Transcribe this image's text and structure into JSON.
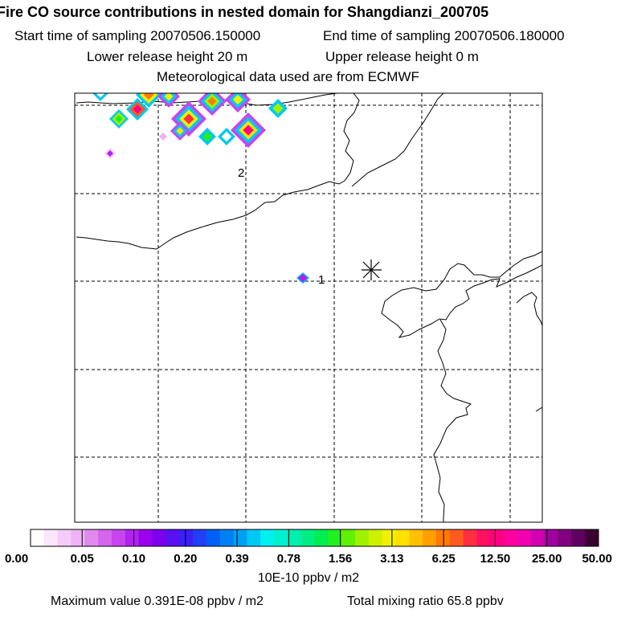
{
  "header": {
    "title": "Fire CO source contributions in nested domain for Shangdianzi_200705",
    "start_label": "Start time of sampling 20070506.150000",
    "end_label": "End time of sampling 20070506.180000",
    "lower_label": "Lower release height   20 m",
    "upper_label": "Upper release height    0 m",
    "met_label": "Meteorological data used are from ECMWF"
  },
  "chart_data": {
    "type": "heatmap",
    "map_labels": [
      {
        "text": "2",
        "desc": "upper label"
      },
      {
        "text": "1",
        "desc": "right of purple diamond"
      }
    ],
    "station_marker": "asterisk",
    "colorbar": {
      "unit": "10E-10 ppbv / m2",
      "tick_labels": [
        "0.00",
        "0.05",
        "0.10",
        "0.20",
        "0.39",
        "0.78",
        "1.56",
        "3.13",
        "6.25",
        "12.50",
        "25.00",
        "50.00"
      ],
      "colors": [
        "#ffffff",
        "#fbe6fb",
        "#f5ccf7",
        "#eeb3f4",
        "#e089ee",
        "#d466ee",
        "#c844ee",
        "#b022ee",
        "#9a00ee",
        "#7a00ee",
        "#5a10f0",
        "#3a20f5",
        "#2040f5",
        "#0060f5",
        "#0080f5",
        "#00a0f5",
        "#00c8f5",
        "#00f0f0",
        "#00f0d0",
        "#00eeb0",
        "#00ee80",
        "#00ee50",
        "#20f020",
        "#60f000",
        "#a0f000",
        "#d0f000",
        "#f0f000",
        "#ffe000",
        "#ffc000",
        "#ffa000",
        "#ff7a00",
        "#ff5a20",
        "#ff3040",
        "#ff1060",
        "#ff0080",
        "#ff00a0",
        "#f000b0",
        "#d000b0",
        "#a000a0",
        "#800080",
        "#600060",
        "#3a0030"
      ]
    },
    "max_value_text": "Maximum value  0.391E-08 ppbv / m2",
    "total_text": "Total mixing ratio      65.8 ppbv"
  }
}
